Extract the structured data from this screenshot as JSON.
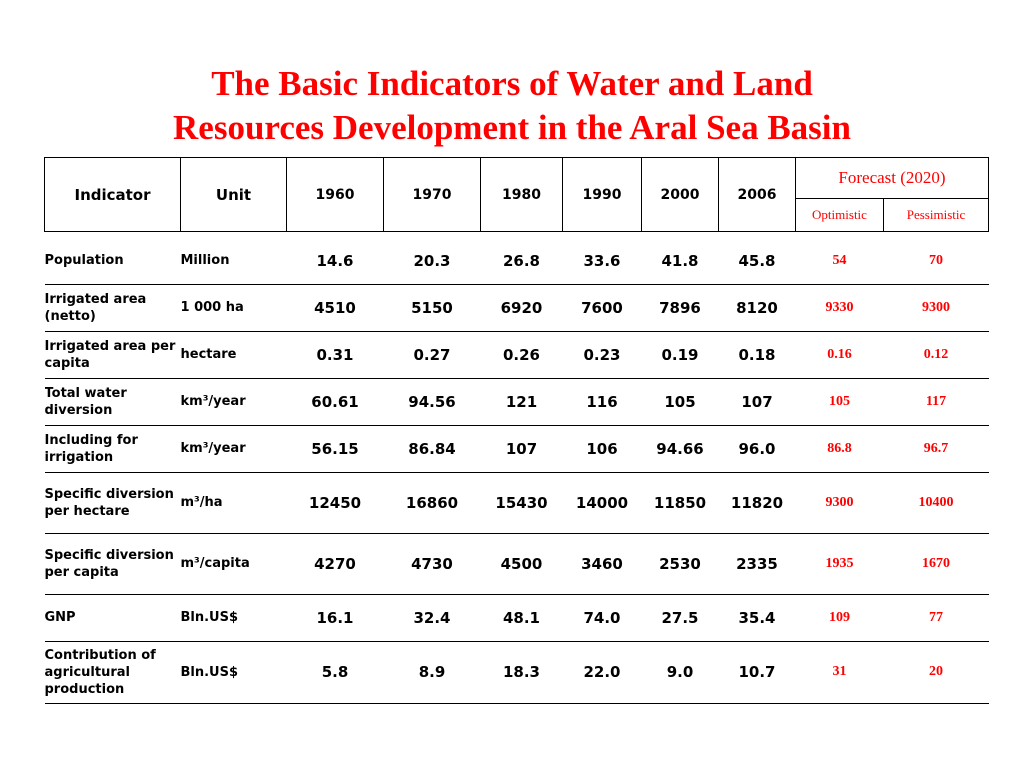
{
  "title": {
    "line1": "The Basic Indicators of Water and Land",
    "line2": "Resources Development in the Aral Sea Basin"
  },
  "header": {
    "indicator": "Indicator",
    "unit": "Unit",
    "years": [
      "1960",
      "1970",
      "1980",
      "1990",
      "2000",
      "2006"
    ],
    "forecast": "Forecast (2020)",
    "optimistic": "Optimistic",
    "pessimistic": "Pessimistic"
  },
  "rows": [
    {
      "indicator": "Population",
      "unit": "Million",
      "values": [
        "14.6",
        "20.3",
        "26.8",
        "33.6",
        "41.8",
        "45.8"
      ],
      "optimistic": "54",
      "pessimistic": "70"
    },
    {
      "indicator": "Irrigated area (netto)",
      "unit": "1 000 ha",
      "values": [
        "4510",
        "5150",
        "6920",
        "7600",
        "7896",
        "8120"
      ],
      "optimistic": "9330",
      "pessimistic": "9300"
    },
    {
      "indicator": "Irrigated area per capita",
      "unit": "hectare",
      "values": [
        "0.31",
        "0.27",
        "0.26",
        "0.23",
        "0.19",
        "0.18"
      ],
      "optimistic": "0.16",
      "pessimistic": "0.12"
    },
    {
      "indicator": "Total water diversion",
      "unit": "km³/year",
      "values": [
        "60.61",
        "94.56",
        "121",
        "116",
        "105",
        "107"
      ],
      "optimistic": "105",
      "pessimistic": "117"
    },
    {
      "indicator": "Including for irrigation",
      "unit": "km³/year",
      "values": [
        "56.15",
        "86.84",
        "107",
        "106",
        "94.66",
        "96.0"
      ],
      "optimistic": "86.8",
      "pessimistic": "96.7"
    },
    {
      "indicator": "Specific diversion per hectare",
      "unit": "m³/ha",
      "values": [
        "12450",
        "16860",
        "15430",
        "14000",
        "11850",
        "11820"
      ],
      "optimistic": "9300",
      "pessimistic": "10400"
    },
    {
      "indicator": "Specific diversion per capita",
      "unit": "m³/capita",
      "values": [
        "4270",
        "4730",
        "4500",
        "3460",
        "2530",
        "2335"
      ],
      "optimistic": "1935",
      "pessimistic": "1670"
    },
    {
      "indicator": "GNP",
      "unit": "Bln.US$",
      "values": [
        "16.1",
        "32.4",
        "48.1",
        "74.0",
        "27.5",
        "35.4"
      ],
      "optimistic": "109",
      "pessimistic": "77"
    },
    {
      "indicator": "Contribution of agricultural production",
      "unit": "Bln.US$",
      "values": [
        "5.8",
        "8.9",
        "18.3",
        "22.0",
        "9.0",
        "10.7"
      ],
      "optimistic": "31",
      "pessimistic": "20"
    }
  ],
  "colors": {
    "title": "#ff0000",
    "forecast_values": "#ff0000",
    "text": "#000000"
  }
}
